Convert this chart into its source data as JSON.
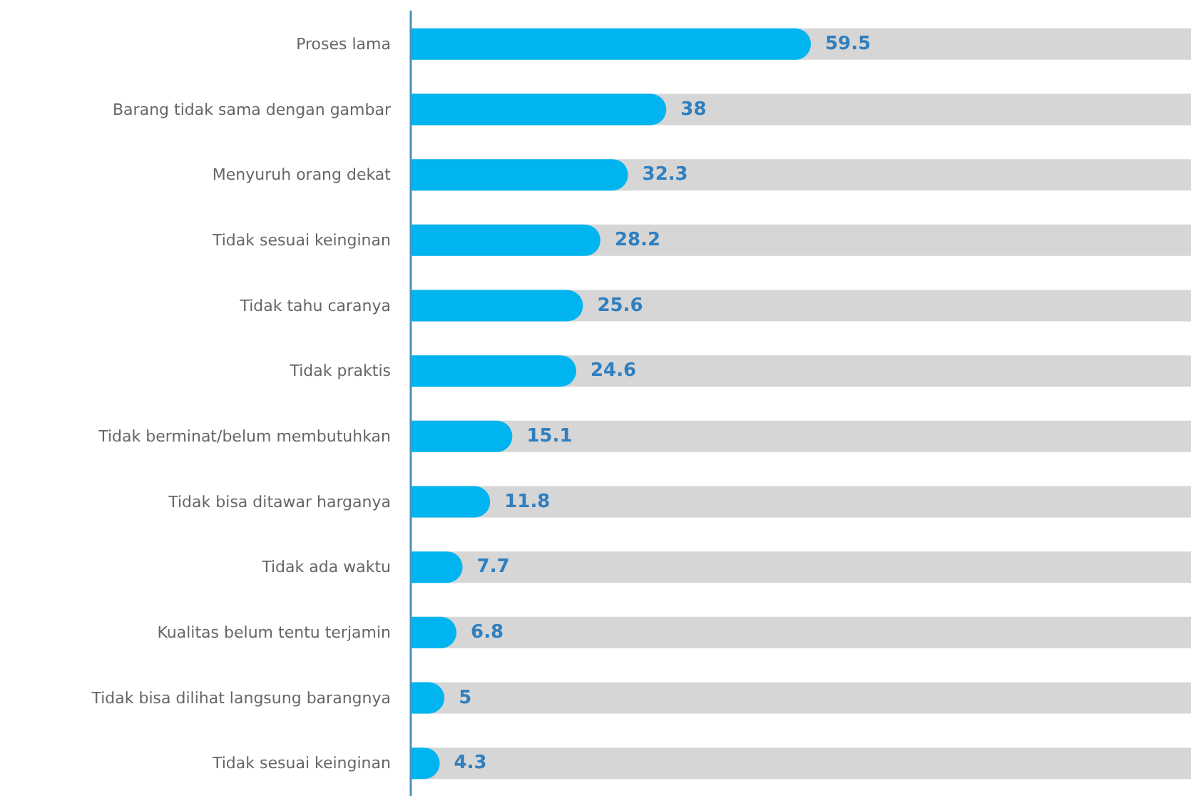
{
  "chart_data": {
    "type": "bar",
    "orientation": "horizontal",
    "categories": [
      "Proses lama",
      "Barang tidak sama dengan gambar",
      "Menyuruh orang dekat",
      "Tidak sesuai keinginan",
      "Tidak tahu caranya",
      "Tidak praktis",
      "Tidak berminat/belum membutuhkan",
      "Tidak bisa ditawar harganya",
      "Tidak ada waktu",
      "Kualitas belum tentu terjamin",
      "Tidak bisa dilihat langsung barangnya",
      "Tidak sesuai keinginan"
    ],
    "values": [
      59.5,
      38,
      32.3,
      28.2,
      25.6,
      24.6,
      15.1,
      11.8,
      7.7,
      6.8,
      5,
      4.3
    ],
    "color": "#00b4ef",
    "data_labels": true,
    "tick_labels": "y"
  }
}
